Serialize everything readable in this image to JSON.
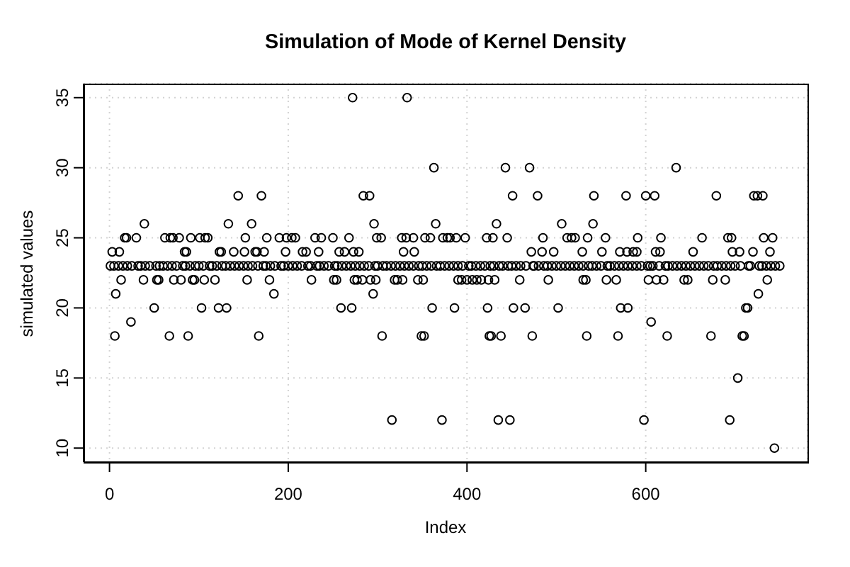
{
  "chart_data": {
    "type": "scatter",
    "title": "Simulation of Mode of Kernel Density",
    "xlabel": "Index",
    "ylabel": "simulated values",
    "x": [
      1,
      3,
      5,
      6,
      7,
      11,
      13,
      15,
      17,
      19,
      24,
      25,
      30,
      35,
      38,
      39,
      45,
      50,
      53,
      55,
      56,
      62,
      65,
      67,
      68,
      71,
      72,
      75,
      78,
      80,
      84,
      85,
      86,
      88,
      91,
      93,
      95,
      96,
      101,
      103,
      105,
      106,
      107,
      110,
      115,
      118,
      122,
      123,
      125,
      126,
      131,
      133,
      135,
      139,
      144,
      145,
      151,
      152,
      154,
      155,
      159,
      163,
      165,
      166,
      167,
      170,
      173,
      175,
      176,
      179,
      184,
      185,
      190,
      195,
      197,
      198,
      204,
      205,
      208,
      215,
      216,
      220,
      225,
      226,
      230,
      234,
      235,
      237,
      245,
      250,
      251,
      254,
      255,
      257,
      259,
      263,
      265,
      268,
      271,
      272,
      273,
      274,
      275,
      277,
      279,
      283,
      284,
      285,
      291,
      292,
      295,
      296,
      297,
      298,
      299,
      304,
      305,
      306,
      315,
      316,
      319,
      322,
      325,
      327,
      328,
      329,
      332,
      333,
      335,
      340,
      341,
      345,
      346,
      349,
      351,
      352,
      353,
      355,
      359,
      361,
      363,
      365,
      366,
      372,
      373,
      375,
      378,
      381,
      385,
      386,
      388,
      390,
      394,
      395,
      398,
      400,
      405,
      406,
      411,
      415,
      416,
      422,
      423,
      424,
      425,
      426,
      427,
      429,
      431,
      433,
      435,
      436,
      438,
      443,
      445,
      446,
      448,
      451,
      452,
      455,
      459,
      465,
      466,
      470,
      472,
      473,
      475,
      479,
      484,
      485,
      486,
      491,
      495,
      497,
      502,
      505,
      506,
      512,
      515,
      517,
      521,
      525,
      529,
      530,
      533,
      534,
      535,
      536,
      541,
      542,
      545,
      551,
      555,
      556,
      557,
      565,
      567,
      569,
      571,
      572,
      575,
      578,
      579,
      580,
      585,
      586,
      590,
      591,
      595,
      598,
      600,
      603,
      605,
      606,
      610,
      611,
      612,
      615,
      616,
      617,
      620,
      624,
      625,
      634,
      635,
      643,
      645,
      647,
      653,
      655,
      663,
      665,
      673,
      675,
      676,
      679,
      685,
      689,
      692,
      694,
      695,
      696,
      697,
      703,
      705,
      706,
      708,
      710,
      712,
      714,
      715,
      720,
      721,
      725,
      726,
      727,
      731,
      732,
      735,
      736,
      739,
      742,
      744,
      745,
      750,
      10,
      20,
      32,
      40,
      52,
      60,
      70,
      82,
      90,
      100,
      112,
      120,
      130,
      140,
      150,
      160,
      172,
      180,
      192,
      200,
      210,
      222,
      232,
      240,
      252,
      260,
      270,
      280,
      290,
      300,
      310,
      320,
      330,
      340,
      350,
      360,
      370,
      380,
      390,
      402,
      410,
      420,
      430,
      440,
      450,
      460,
      474,
      480,
      490,
      500,
      510,
      520,
      530,
      540,
      550,
      560,
      570,
      580,
      590,
      602,
      608,
      622,
      630,
      640,
      650,
      660,
      670,
      680,
      690,
      700,
      717,
      730,
      740
    ],
    "values": [
      23,
      24,
      23,
      18,
      21,
      24,
      22,
      23,
      25,
      25,
      19,
      23,
      25,
      23,
      22,
      26,
      23,
      20,
      22,
      22,
      23,
      25,
      23,
      18,
      25,
      25,
      22,
      23,
      25,
      22,
      24,
      23,
      24,
      18,
      25,
      22,
      22,
      23,
      25,
      20,
      23,
      22,
      25,
      25,
      23,
      22,
      20,
      24,
      24,
      23,
      20,
      26,
      23,
      24,
      28,
      23,
      24,
      25,
      22,
      23,
      26,
      24,
      24,
      23,
      18,
      28,
      24,
      23,
      25,
      22,
      21,
      23,
      25,
      23,
      24,
      25,
      25,
      23,
      25,
      23,
      24,
      24,
      23,
      22,
      25,
      24,
      23,
      25,
      23,
      25,
      22,
      22,
      23,
      24,
      20,
      24,
      23,
      25,
      20,
      35,
      24,
      22,
      23,
      22,
      24,
      22,
      28,
      23,
      28,
      22,
      21,
      26,
      23,
      22,
      25,
      25,
      18,
      23,
      23,
      12,
      22,
      22,
      23,
      25,
      22,
      24,
      25,
      35,
      23,
      25,
      24,
      22,
      23,
      18,
      22,
      18,
      25,
      23,
      25,
      20,
      30,
      26,
      23,
      12,
      25,
      23,
      25,
      25,
      23,
      20,
      25,
      22,
      22,
      23,
      25,
      22,
      23,
      22,
      22,
      23,
      22,
      25,
      20,
      22,
      18,
      23,
      18,
      25,
      22,
      26,
      12,
      23,
      18,
      30,
      25,
      23,
      12,
      28,
      20,
      23,
      22,
      20,
      23,
      30,
      24,
      18,
      23,
      28,
      24,
      25,
      23,
      22,
      23,
      24,
      20,
      23,
      26,
      25,
      23,
      25,
      25,
      23,
      24,
      22,
      22,
      18,
      25,
      23,
      26,
      28,
      23,
      24,
      25,
      22,
      23,
      23,
      22,
      18,
      24,
      20,
      23,
      28,
      24,
      20,
      23,
      24,
      24,
      25,
      23,
      12,
      28,
      22,
      23,
      19,
      28,
      24,
      22,
      23,
      24,
      25,
      22,
      18,
      23,
      30,
      23,
      22,
      23,
      22,
      24,
      23,
      25,
      23,
      18,
      22,
      23,
      28,
      23,
      22,
      25,
      12,
      23,
      25,
      24,
      15,
      24,
      23,
      18,
      18,
      20,
      20,
      23,
      24,
      28,
      28,
      21,
      23,
      28,
      25,
      23,
      22,
      24,
      25,
      10,
      23,
      23,
      23,
      23,
      23,
      23,
      23,
      23,
      23,
      23,
      23,
      23,
      23,
      23,
      23,
      23,
      23,
      23,
      23,
      23,
      23,
      23,
      23,
      23,
      23,
      23,
      23,
      23,
      23,
      23,
      23,
      23,
      23,
      23,
      23,
      23,
      23,
      23,
      23,
      23,
      23,
      23,
      23,
      23,
      23,
      23,
      23,
      23,
      23,
      23,
      23,
      23,
      23,
      23,
      23,
      23,
      23,
      23,
      23,
      23,
      23,
      23,
      23,
      23,
      23,
      23,
      23,
      23,
      23,
      23,
      23,
      23,
      23,
      23,
      23
    ],
    "color": "#000000",
    "marker": "circle",
    "xlim": [
      -29,
      781
    ],
    "xticks": [
      0,
      200,
      400,
      600
    ],
    "ylim": [
      9,
      36
    ],
    "yticks": [
      10,
      15,
      20,
      25,
      30,
      35
    ],
    "grid": true
  }
}
